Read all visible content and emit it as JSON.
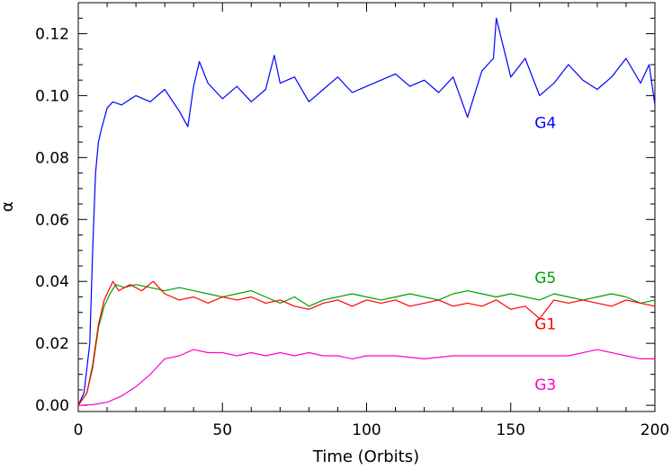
{
  "chart_data": {
    "type": "line",
    "title": "",
    "xlabel": "Time (Orbits)",
    "ylabel": "α",
    "xlim": [
      0,
      200
    ],
    "ylim": [
      -0.002,
      0.13
    ],
    "xticks": [
      0,
      50,
      100,
      150,
      200
    ],
    "xtick_labels": [
      "0",
      "50",
      "100",
      "150",
      "200"
    ],
    "yticks": [
      0.0,
      0.02,
      0.04,
      0.06,
      0.08,
      0.1,
      0.12
    ],
    "ytick_labels": [
      "0.00",
      "0.02",
      "0.04",
      "0.06",
      "0.08",
      "0.10",
      "0.12"
    ],
    "grid": false,
    "legend": "none (series labelled inline)",
    "series": [
      {
        "name": "G4",
        "color": "#0000ff",
        "label_pos": [
          162,
          0.0895
        ],
        "x": [
          0,
          2,
          4,
          5,
          6,
          7,
          8,
          10,
          12,
          15,
          20,
          25,
          30,
          35,
          38,
          40,
          42,
          45,
          50,
          55,
          60,
          65,
          68,
          70,
          75,
          80,
          85,
          90,
          95,
          100,
          105,
          110,
          115,
          120,
          125,
          130,
          135,
          140,
          144,
          145,
          150,
          155,
          160,
          165,
          170,
          175,
          180,
          185,
          190,
          195,
          198,
          200
        ],
        "y": [
          0.0,
          0.004,
          0.02,
          0.05,
          0.075,
          0.085,
          0.089,
          0.096,
          0.098,
          0.097,
          0.1,
          0.098,
          0.102,
          0.095,
          0.09,
          0.103,
          0.111,
          0.104,
          0.099,
          0.103,
          0.098,
          0.102,
          0.113,
          0.104,
          0.106,
          0.098,
          0.102,
          0.106,
          0.101,
          0.103,
          0.105,
          0.107,
          0.103,
          0.105,
          0.101,
          0.106,
          0.093,
          0.108,
          0.112,
          0.125,
          0.106,
          0.112,
          0.1,
          0.104,
          0.11,
          0.105,
          0.102,
          0.106,
          0.112,
          0.104,
          0.11,
          0.097
        ]
      },
      {
        "name": "G5",
        "color": "#00a000",
        "label_pos": [
          162,
          0.0395
        ],
        "x": [
          0,
          3,
          5,
          7,
          9,
          11,
          13,
          16,
          20,
          25,
          30,
          35,
          40,
          45,
          50,
          55,
          60,
          65,
          70,
          75,
          80,
          85,
          90,
          95,
          100,
          105,
          110,
          115,
          120,
          125,
          130,
          135,
          140,
          145,
          150,
          155,
          160,
          165,
          170,
          175,
          180,
          185,
          190,
          195,
          200
        ],
        "y": [
          0.0,
          0.004,
          0.012,
          0.025,
          0.032,
          0.036,
          0.039,
          0.038,
          0.039,
          0.038,
          0.037,
          0.038,
          0.037,
          0.036,
          0.035,
          0.036,
          0.037,
          0.035,
          0.033,
          0.035,
          0.032,
          0.034,
          0.035,
          0.036,
          0.035,
          0.034,
          0.035,
          0.036,
          0.035,
          0.034,
          0.036,
          0.037,
          0.036,
          0.035,
          0.036,
          0.035,
          0.034,
          0.036,
          0.035,
          0.034,
          0.035,
          0.036,
          0.035,
          0.033,
          0.034
        ]
      },
      {
        "name": "G1",
        "color": "#ff0000",
        "label_pos": [
          162,
          0.0245
        ],
        "x": [
          0,
          3,
          5,
          7,
          9,
          11,
          12,
          14,
          18,
          22,
          26,
          30,
          35,
          40,
          45,
          50,
          55,
          60,
          65,
          70,
          75,
          80,
          85,
          90,
          95,
          100,
          105,
          110,
          115,
          120,
          125,
          130,
          135,
          140,
          145,
          150,
          155,
          160,
          165,
          170,
          175,
          180,
          185,
          190,
          195,
          200
        ],
        "y": [
          0.0,
          0.004,
          0.013,
          0.026,
          0.034,
          0.038,
          0.04,
          0.037,
          0.039,
          0.037,
          0.04,
          0.036,
          0.034,
          0.035,
          0.033,
          0.035,
          0.034,
          0.035,
          0.033,
          0.034,
          0.032,
          0.031,
          0.033,
          0.034,
          0.032,
          0.034,
          0.033,
          0.034,
          0.032,
          0.033,
          0.034,
          0.032,
          0.033,
          0.032,
          0.034,
          0.031,
          0.032,
          0.028,
          0.034,
          0.033,
          0.034,
          0.033,
          0.032,
          0.034,
          0.033,
          0.032
        ]
      },
      {
        "name": "G3",
        "color": "#ff00c8",
        "label_pos": [
          162,
          0.005
        ],
        "x": [
          0,
          5,
          10,
          15,
          20,
          25,
          30,
          35,
          40,
          45,
          50,
          55,
          60,
          65,
          70,
          75,
          80,
          85,
          90,
          95,
          100,
          110,
          120,
          130,
          140,
          150,
          160,
          170,
          180,
          190,
          195,
          200
        ],
        "y": [
          0.0,
          0.0002,
          0.001,
          0.003,
          0.006,
          0.01,
          0.015,
          0.016,
          0.018,
          0.017,
          0.017,
          0.016,
          0.017,
          0.016,
          0.017,
          0.016,
          0.017,
          0.016,
          0.016,
          0.015,
          0.016,
          0.016,
          0.015,
          0.016,
          0.016,
          0.016,
          0.016,
          0.016,
          0.018,
          0.016,
          0.015,
          0.015
        ]
      }
    ]
  }
}
